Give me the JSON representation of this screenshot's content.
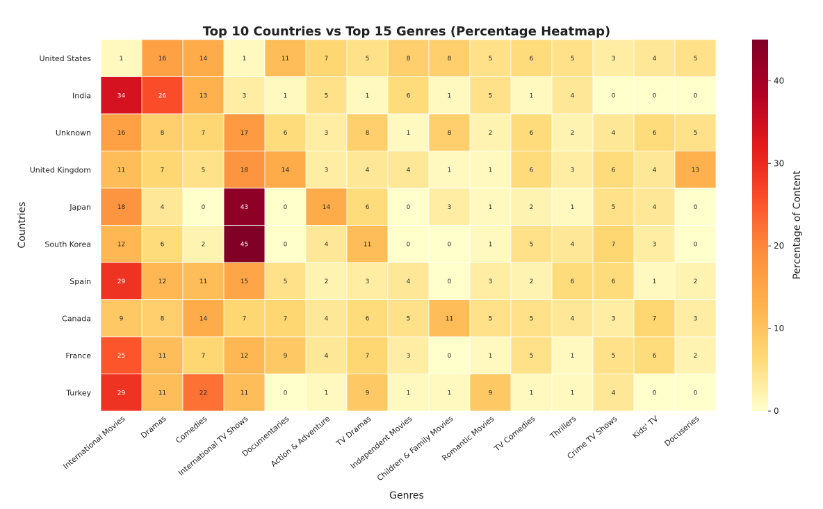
{
  "chart_data": {
    "type": "heatmap",
    "title": "Top 10 Countries vs Top 15 Genres (Percentage Heatmap)",
    "xlabel": "Genres",
    "ylabel": "Countries",
    "colorbar_label": "Percentage of Content",
    "colorbar_ticks": [
      0,
      10,
      20,
      30,
      40
    ],
    "value_range": [
      0,
      45
    ],
    "colormap": [
      "#ffffcc",
      "#fed976",
      "#feb24c",
      "#fd8d3c",
      "#fc4e2a",
      "#e31a1c",
      "#b10026",
      "#800026"
    ],
    "rows": [
      "United States",
      "India",
      "Unknown",
      "United Kingdom",
      "Japan",
      "South Korea",
      "Spain",
      "Canada",
      "France",
      "Turkey"
    ],
    "columns": [
      "International Movies",
      "Dramas",
      "Comedies",
      "International TV Shows",
      "Documentaries",
      "Action & Adventure",
      "TV Dramas",
      "Independent Movies",
      "Children & Family Movies",
      "Romantic Movies",
      "TV Comedies",
      "Thrillers",
      "Crime TV Shows",
      "Kids' TV",
      "Docuseries"
    ],
    "values": [
      [
        1,
        16,
        14,
        1,
        11,
        7,
        5,
        8,
        8,
        5,
        6,
        5,
        3,
        4,
        5
      ],
      [
        34,
        26,
        13,
        3,
        1,
        5,
        1,
        6,
        1,
        5,
        1,
        4,
        0,
        0,
        0
      ],
      [
        16,
        8,
        7,
        17,
        6,
        3,
        8,
        1,
        8,
        2,
        6,
        2,
        4,
        6,
        5
      ],
      [
        11,
        7,
        5,
        18,
        14,
        3,
        4,
        4,
        1,
        1,
        6,
        3,
        6,
        4,
        13
      ],
      [
        18,
        4,
        0,
        43,
        0,
        14,
        6,
        0,
        3,
        1,
        2,
        1,
        5,
        4,
        0
      ],
      [
        12,
        6,
        2,
        45,
        0,
        4,
        11,
        0,
        0,
        1,
        5,
        4,
        7,
        3,
        0
      ],
      [
        29,
        12,
        11,
        15,
        5,
        2,
        3,
        4,
        0,
        3,
        2,
        6,
        6,
        1,
        2
      ],
      [
        9,
        8,
        14,
        7,
        7,
        4,
        6,
        5,
        11,
        5,
        5,
        4,
        3,
        7,
        3
      ],
      [
        25,
        11,
        7,
        12,
        9,
        4,
        7,
        3,
        0,
        1,
        5,
        1,
        5,
        6,
        2
      ],
      [
        29,
        11,
        22,
        11,
        0,
        1,
        9,
        1,
        1,
        9,
        1,
        1,
        4,
        0,
        0
      ]
    ]
  }
}
